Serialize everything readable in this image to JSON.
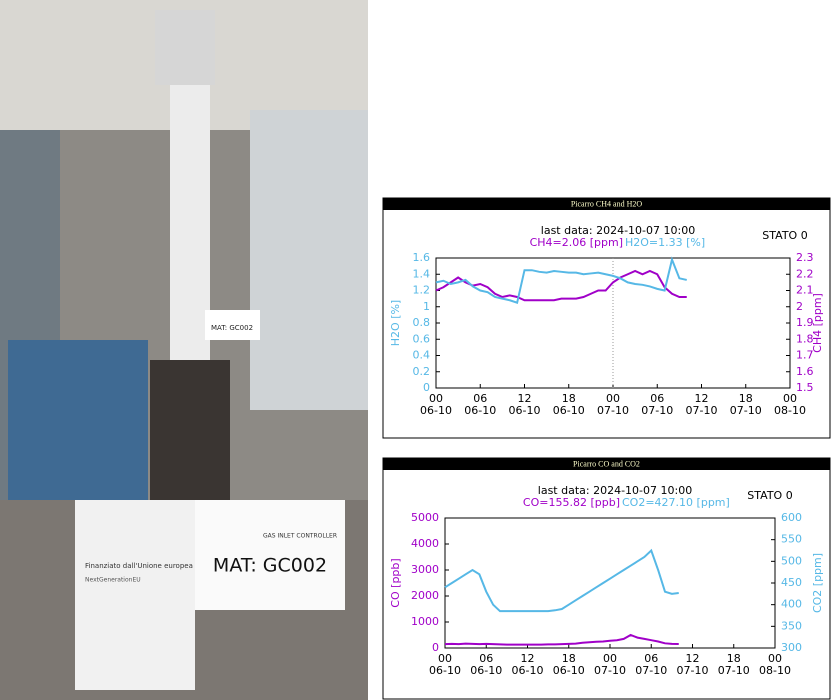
{
  "photo": {
    "labels": [
      "MAT: GC002",
      "GAS INLET CONTROLLER",
      "MAT: GC002",
      "Finanziato dall'Unione europea",
      "NextGenerationEU"
    ]
  },
  "chart_data": [
    {
      "type": "line",
      "title": "Picarro CH4 and H2O",
      "subtitle": "last data: 2024-10-07 10:00",
      "annotation": "STATO 0",
      "ylabel": "H2O [%]",
      "y2label": "CH4 [ppm]",
      "x": [
        0,
        1,
        2,
        3,
        4,
        5,
        6,
        7,
        8,
        9,
        10,
        11,
        12,
        13,
        14,
        15,
        16,
        17,
        18,
        19,
        20,
        21,
        22,
        23,
        24,
        25,
        26,
        27,
        28,
        29,
        30,
        31,
        32,
        33,
        34
      ],
      "series": [
        {
          "name": "CH4=2.06 [ppm]",
          "color": "#a000c8",
          "axis": "y2",
          "values": [
            2.1,
            2.12,
            2.15,
            2.18,
            2.15,
            2.13,
            2.14,
            2.12,
            2.08,
            2.06,
            2.07,
            2.06,
            2.04,
            2.04,
            2.04,
            2.04,
            2.04,
            2.05,
            2.05,
            2.05,
            2.06,
            2.08,
            2.1,
            2.1,
            2.15,
            2.18,
            2.2,
            2.22,
            2.2,
            2.22,
            2.2,
            2.12,
            2.08,
            2.06,
            2.06
          ]
        },
        {
          "name": "H2O=1.33 [%]",
          "color": "#56b8e6",
          "axis": "y",
          "values": [
            1.3,
            1.32,
            1.28,
            1.3,
            1.33,
            1.25,
            1.2,
            1.18,
            1.12,
            1.1,
            1.08,
            1.05,
            1.45,
            1.45,
            1.43,
            1.42,
            1.44,
            1.43,
            1.42,
            1.42,
            1.4,
            1.41,
            1.42,
            1.4,
            1.38,
            1.35,
            1.3,
            1.28,
            1.27,
            1.25,
            1.22,
            1.2,
            1.58,
            1.35,
            1.33
          ]
        }
      ],
      "xlim": [
        0,
        48
      ],
      "vline": 24,
      "xticks": [
        {
          "value": 0,
          "label": "00",
          "date": "06-10"
        },
        {
          "value": 6,
          "label": "06",
          "date": "06-10"
        },
        {
          "value": 12,
          "label": "12",
          "date": "06-10"
        },
        {
          "value": 18,
          "label": "18",
          "date": "06-10"
        },
        {
          "value": 24,
          "label": "00",
          "date": "07-10"
        },
        {
          "value": 30,
          "label": "06",
          "date": "07-10"
        },
        {
          "value": 36,
          "label": "12",
          "date": "07-10"
        },
        {
          "value": 42,
          "label": "18",
          "date": "07-10"
        },
        {
          "value": 48,
          "label": "00",
          "date": "08-10"
        }
      ],
      "ylim": [
        0,
        1.6
      ],
      "yticks": [
        0,
        0.2,
        0.4,
        0.6,
        0.8,
        1,
        1.2,
        1.4,
        1.6
      ],
      "y2lim": [
        1.5,
        2.3
      ],
      "y2ticks": [
        1.5,
        1.6,
        1.7,
        1.8,
        1.9,
        2,
        2.1,
        2.2,
        2.3
      ]
    },
    {
      "type": "line",
      "title": "Picarro CO and CO2",
      "subtitle": "last data: 2024-10-07 10:00",
      "annotation": "STATO 0",
      "ylabel": "CO [ppb]",
      "y2label": "CO2 [ppm]",
      "x": [
        0,
        1,
        2,
        3,
        4,
        5,
        6,
        7,
        8,
        9,
        10,
        11,
        12,
        13,
        14,
        15,
        16,
        17,
        18,
        19,
        20,
        21,
        22,
        23,
        24,
        25,
        26,
        27,
        28,
        29,
        30,
        31,
        32,
        33,
        34
      ],
      "series": [
        {
          "name": "CO=155.82 [ppb]",
          "color": "#a000c8",
          "axis": "y",
          "values": [
            150,
            160,
            150,
            170,
            160,
            150,
            160,
            150,
            140,
            130,
            130,
            130,
            130,
            130,
            130,
            140,
            140,
            150,
            160,
            170,
            200,
            220,
            240,
            250,
            280,
            300,
            350,
            500,
            400,
            350,
            300,
            250,
            180,
            160,
            156
          ]
        },
        {
          "name": "CO2=427.10 [ppm]",
          "color": "#56b8e6",
          "axis": "y2",
          "values": [
            440,
            450,
            460,
            470,
            480,
            470,
            430,
            400,
            385,
            385,
            385,
            385,
            385,
            385,
            385,
            385,
            387,
            390,
            400,
            410,
            420,
            430,
            440,
            450,
            460,
            470,
            480,
            490,
            500,
            510,
            525,
            480,
            430,
            425,
            427
          ]
        }
      ],
      "xlim": [
        0,
        48
      ],
      "xticks": [
        {
          "value": 0,
          "label": "00",
          "date": "06-10"
        },
        {
          "value": 6,
          "label": "06",
          "date": "06-10"
        },
        {
          "value": 12,
          "label": "12",
          "date": "06-10"
        },
        {
          "value": 18,
          "label": "18",
          "date": "06-10"
        },
        {
          "value": 24,
          "label": "00",
          "date": "07-10"
        },
        {
          "value": 30,
          "label": "06",
          "date": "07-10"
        },
        {
          "value": 36,
          "label": "12",
          "date": "07-10"
        },
        {
          "value": 42,
          "label": "18",
          "date": "07-10"
        },
        {
          "value": 48,
          "label": "00",
          "date": "08-10"
        }
      ],
      "ylim": [
        0,
        5000
      ],
      "yticks": [
        0,
        1000,
        2000,
        3000,
        4000,
        5000
      ],
      "y2lim": [
        300,
        600
      ],
      "y2ticks": [
        300,
        350,
        400,
        450,
        500,
        550,
        600
      ]
    }
  ]
}
